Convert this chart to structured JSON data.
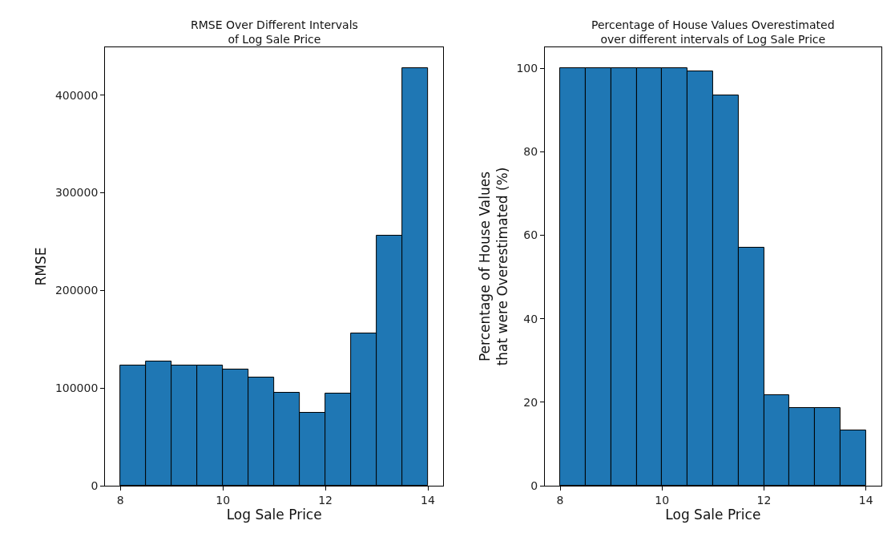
{
  "chart_data": [
    {
      "type": "histogram",
      "title": "RMSE Over Different Intervals\nof Log Sale Price",
      "xlabel": "Log Sale Price",
      "ylabel": "RMSE",
      "bins": [
        8,
        8.5,
        9,
        9.5,
        10,
        10.5,
        11,
        11.5,
        12,
        12.5,
        13,
        13.5,
        14
      ],
      "values": [
        123000,
        127000,
        123000,
        123000,
        119000,
        111000,
        95000,
        75000,
        94000,
        156000,
        256000,
        428000
      ],
      "color": "#1f77b4",
      "xlim": [
        7.7,
        14.3
      ],
      "xticks": [
        8,
        10,
        12,
        14
      ],
      "ylim": [
        0,
        449000
      ],
      "yticks": [
        0,
        100000,
        200000,
        300000,
        400000
      ]
    },
    {
      "type": "histogram",
      "title": "Percentage of House Values Overestimated\nover different intervals of Log Sale Price",
      "xlabel": "Log Sale Price",
      "ylabel": "Percentage of House Values\nthat were Overestimated (%)",
      "bins": [
        8,
        8.5,
        9,
        9.5,
        10,
        10.5,
        11,
        11.5,
        12,
        12.5,
        13,
        13.5,
        14
      ],
      "values": [
        100,
        100,
        100,
        100,
        100,
        99.2,
        93.4,
        57.0,
        21.7,
        18.7,
        18.7,
        13.3
      ],
      "color": "#1f77b4",
      "xlim": [
        7.7,
        14.3
      ],
      "xticks": [
        8,
        10,
        12,
        14
      ],
      "ylim": [
        0,
        105
      ],
      "yticks": [
        0,
        20,
        40,
        60,
        80,
        100
      ]
    }
  ]
}
